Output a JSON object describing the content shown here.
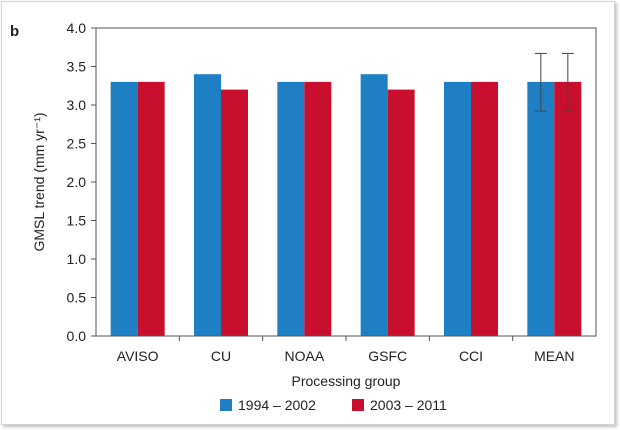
{
  "chart_data": {
    "type": "bar",
    "panel_label": "b",
    "categories": [
      "AVISO",
      "CU",
      "NOAA",
      "GSFC",
      "CCI",
      "MEAN"
    ],
    "series": [
      {
        "name": "1994 – 2002",
        "values": [
          3.3,
          3.4,
          3.3,
          3.4,
          3.3,
          3.3
        ],
        "color": "#1f7fc4"
      },
      {
        "name": "2003 – 2011",
        "values": [
          3.3,
          3.2,
          3.3,
          3.2,
          3.3,
          3.3
        ],
        "color": "#c8102e"
      }
    ],
    "error_bars": {
      "category": "MEAN",
      "series": [
        {
          "low": 2.92,
          "high": 3.67
        },
        {
          "low": 2.92,
          "high": 3.67
        }
      ]
    },
    "xlabel": "Processing group",
    "ylabel": "GMSL trend (mm yr⁻¹)",
    "ylim": [
      0,
      4
    ],
    "yticks": [
      "0.0",
      "0.5",
      "1.0",
      "1.5",
      "2.0",
      "2.5",
      "3.0",
      "3.5",
      "4.0"
    ],
    "grid": false,
    "legend_position": "bottom"
  }
}
